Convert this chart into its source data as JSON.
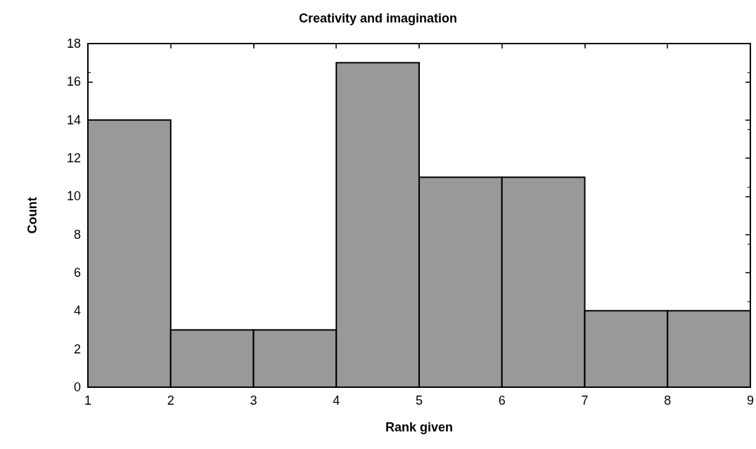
{
  "chart_data": {
    "type": "histogram",
    "title": "Creativity and imagination",
    "xlabel": "Rank given",
    "ylabel": "Count",
    "bins": [
      1,
      2,
      3,
      4,
      5,
      6,
      7,
      8,
      9
    ],
    "values": [
      14,
      3,
      3,
      17,
      11,
      11,
      4,
      4
    ],
    "color": "#999999",
    "xlim": [
      1,
      9
    ],
    "xticks": [
      1,
      2,
      3,
      4,
      5,
      6,
      7,
      8,
      9
    ],
    "ylim": [
      0,
      18
    ],
    "yticks": [
      0,
      2,
      4,
      6,
      8,
      10,
      12,
      14,
      16,
      18
    ],
    "grid": false
  }
}
